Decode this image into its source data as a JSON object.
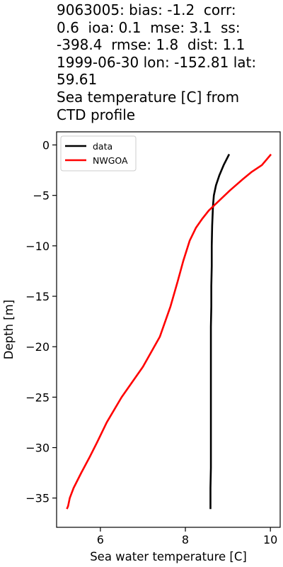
{
  "chart_data": {
    "type": "line",
    "title": "9063005: bias: -1.2  corr:\n0.6  ioa: 0.1  mse: 3.1  ss:\n-398.4  rmse: 1.8  dist: 1.1\n1999-06-30 lon: -152.81 lat:\n59.61\nSea temperature [C] from\nCTD profile",
    "xlabel": "Sea water temperature [C]",
    "ylabel": "Depth [m]",
    "xlim": [
      4.97,
      10.23
    ],
    "ylim": [
      -37.9,
      1.3
    ],
    "xticks": [
      6,
      8,
      10
    ],
    "xtick_labels": [
      "6",
      "8",
      "10"
    ],
    "yticks": [
      0,
      -5,
      -10,
      -15,
      -20,
      -25,
      -30,
      -35
    ],
    "ytick_labels": [
      "0",
      "−5",
      "−10",
      "−15",
      "−20",
      "−25",
      "−30",
      "−35"
    ],
    "grid": false,
    "legend_position": "top-left",
    "series": [
      {
        "name": "data",
        "color": "#000000",
        "x": [
          9.02,
          8.9,
          8.8,
          8.72,
          8.67,
          8.65,
          8.64,
          8.63,
          8.62,
          8.62,
          8.61,
          8.61,
          8.6,
          8.6,
          8.6,
          8.6,
          8.6,
          8.6,
          8.59,
          8.59
        ],
        "y": [
          -1,
          -2,
          -3,
          -4,
          -5,
          -6,
          -7,
          -8,
          -10,
          -12,
          -14,
          -16,
          -18,
          -20,
          -24,
          -28,
          -30,
          -32,
          -34,
          -36
        ]
      },
      {
        "name": "NWGOA",
        "color": "#ff0000",
        "x": [
          10.0,
          9.8,
          9.55,
          9.35,
          9.05,
          8.8,
          8.55,
          8.4,
          8.25,
          8.1,
          7.95,
          7.82,
          7.65,
          7.4,
          7.0,
          6.5,
          6.15,
          5.92,
          5.74,
          5.55,
          5.37,
          5.28,
          5.24,
          5.22
        ],
        "y": [
          -1,
          -2,
          -2.7,
          -3.4,
          -4.5,
          -5.5,
          -6.5,
          -7.3,
          -8.2,
          -9.5,
          -11.5,
          -13.5,
          -16,
          -19,
          -22,
          -25,
          -27.5,
          -29.5,
          -31,
          -32.5,
          -34,
          -35,
          -35.8,
          -36
        ]
      }
    ]
  }
}
